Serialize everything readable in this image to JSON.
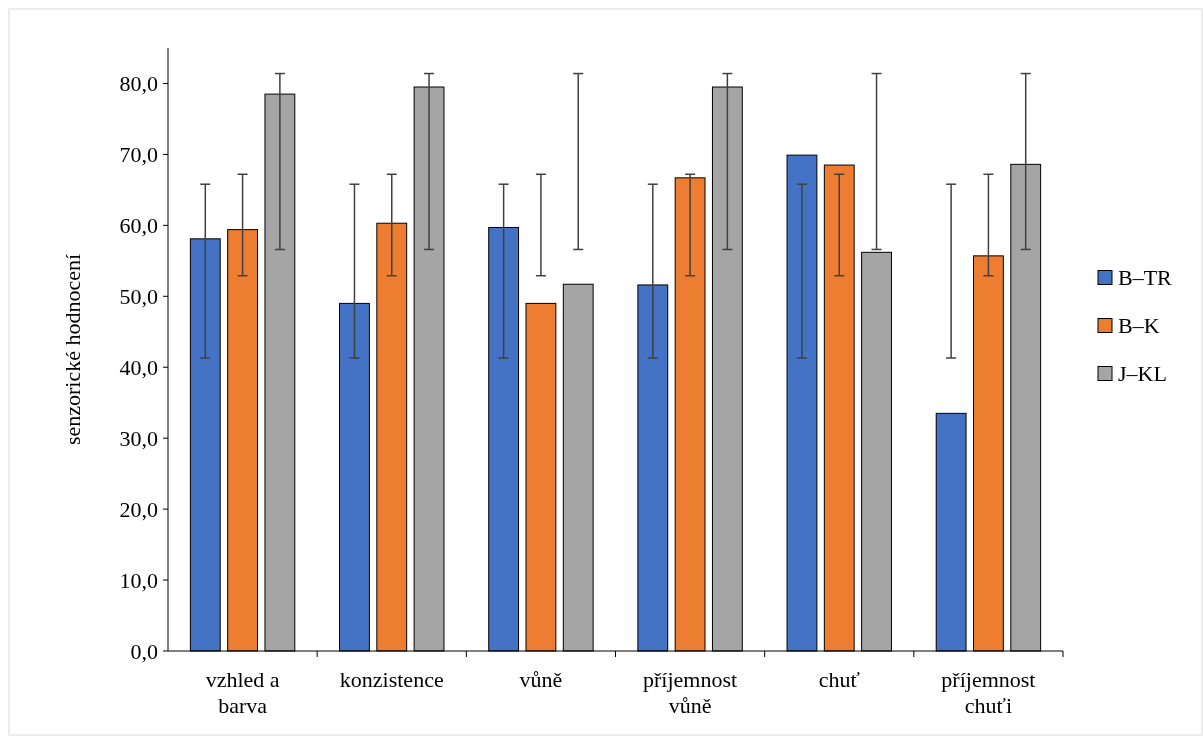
{
  "chart_data": {
    "type": "bar",
    "ylabel": "senzorické hodnocení",
    "categories": [
      "vzhled a barva",
      "konzistence",
      "vůně",
      "příjemnost vůně",
      "chuť",
      "příjemnost chuťi"
    ],
    "series": [
      {
        "name": "B–TR",
        "color": "#4472c4",
        "values": [
          58.1,
          49.0,
          59.7,
          51.6,
          69.9,
          33.5
        ],
        "errors": [
          [
            41.3,
            65.8
          ],
          [
            41.3,
            65.8
          ],
          [
            41.3,
            65.8
          ],
          [
            41.3,
            65.8
          ],
          [
            41.3,
            65.8
          ],
          [
            41.3,
            65.8
          ]
        ]
      },
      {
        "name": "B–K",
        "color": "#ed7d31",
        "values": [
          59.4,
          60.3,
          49.0,
          66.7,
          68.5,
          55.7
        ],
        "errors": [
          [
            52.9,
            67.2
          ],
          [
            52.9,
            67.2
          ],
          [
            52.9,
            67.2
          ],
          [
            52.9,
            67.2
          ],
          [
            52.9,
            67.2
          ],
          [
            52.9,
            67.2
          ]
        ]
      },
      {
        "name": "J–KL",
        "color": "#a5a5a5",
        "values": [
          78.5,
          79.5,
          51.7,
          79.5,
          56.2,
          68.6
        ],
        "errors": [
          [
            56.6,
            81.4
          ],
          [
            56.6,
            81.4
          ],
          [
            56.6,
            81.4
          ],
          [
            56.6,
            81.4
          ],
          [
            56.6,
            81.4
          ],
          [
            56.6,
            81.4
          ]
        ]
      }
    ],
    "ylim": [
      0,
      85
    ],
    "yticks": [
      {
        "value": 0,
        "label": "0,0"
      },
      {
        "value": 10,
        "label": "10,0"
      },
      {
        "value": 20,
        "label": "20,0"
      },
      {
        "value": 30,
        "label": "30,0"
      },
      {
        "value": 40,
        "label": "40,0"
      },
      {
        "value": 50,
        "label": "50,0"
      },
      {
        "value": 60,
        "label": "60,0"
      },
      {
        "value": 70,
        "label": "70,0"
      },
      {
        "value": 80,
        "label": "80,0"
      }
    ],
    "legend": "right"
  }
}
